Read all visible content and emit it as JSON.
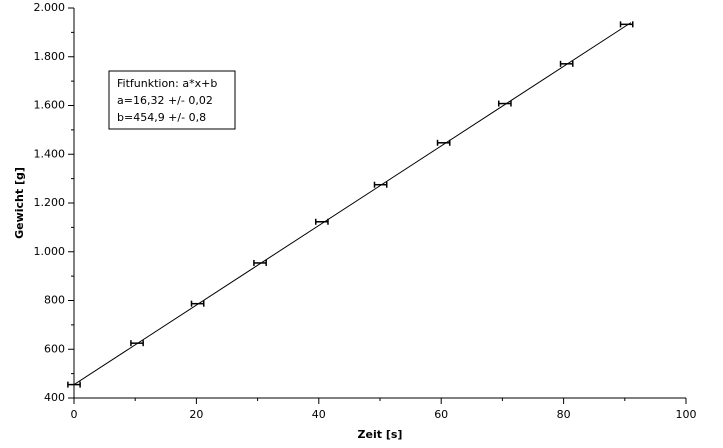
{
  "chart_data": {
    "type": "scatter",
    "x_label": "Zeit [s]",
    "y_label": "Gewicht [g]",
    "x": [
      0,
      10.3,
      20.2,
      30.4,
      40.5,
      50.1,
      60.4,
      70.4,
      80.5,
      90.3
    ],
    "xerr": [
      1,
      1,
      1,
      1,
      1,
      1,
      1,
      1,
      1,
      1
    ],
    "values": [
      455,
      625,
      787,
      954,
      1123,
      1275,
      1447,
      1608,
      1771,
      1933
    ],
    "color": "#000000",
    "fit_line": {
      "x": [
        0,
        91
      ],
      "values": [
        454.9,
        1940
      ]
    },
    "annotation": [
      "Fitfunktion: a*x+b",
      "a=16,32 +/- 0,02",
      "b=454,9 +/- 0,8"
    ],
    "xlim": [
      0,
      100
    ],
    "xticks": [
      0,
      20,
      40,
      60,
      80,
      100
    ],
    "ylim": [
      400,
      2000
    ],
    "yticks": [
      400,
      600,
      800,
      {
        "value": 1000,
        "label": "1.000"
      },
      {
        "value": 1200,
        "label": "1.200"
      },
      {
        "value": 1400,
        "label": "1.400"
      },
      {
        "value": 1600,
        "label": "1.600"
      },
      {
        "value": 1800,
        "label": "1.800"
      },
      {
        "value": 2000,
        "label": "2.000"
      }
    ]
  }
}
